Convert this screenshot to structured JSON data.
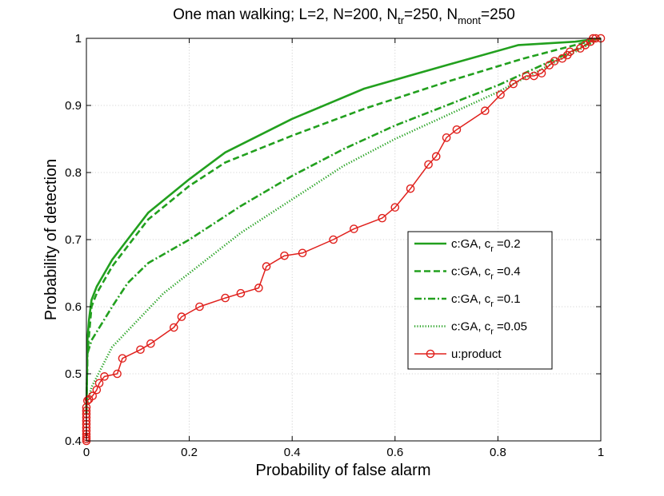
{
  "chart_data": {
    "type": "line",
    "title": {
      "prefix": "One man walking; L=2,  N=200, N",
      "sub1": "tr",
      "mid": "=250, N",
      "sub2": "mont",
      "suffix": "=250"
    },
    "xlabel": "Probability of false alarm",
    "ylabel": "Probability of detection",
    "xlim": [
      0,
      1
    ],
    "ylim": [
      0.4,
      1
    ],
    "xticks": [
      0,
      0.2,
      0.4,
      0.6,
      0.8,
      1
    ],
    "yticks": [
      0.4,
      0.5,
      0.6,
      0.7,
      0.8,
      0.9,
      1
    ],
    "xtick_labels": [
      "0",
      "0.2",
      "0.4",
      "0.6",
      "0.8",
      "1"
    ],
    "ytick_labels": [
      "0.4",
      "0.5",
      "0.6",
      "0.7",
      "0.8",
      "0.9",
      "1"
    ],
    "grid": true,
    "legend_position": "right-middle",
    "series": [
      {
        "name": "c:GA, c",
        "sub": "r",
        "suffix": " =0.2",
        "color": "#22a01e",
        "style": "solid",
        "marker": "none",
        "x": [
          0,
          0.002,
          0.005,
          0.01,
          0.02,
          0.05,
          0.08,
          0.12,
          0.2,
          0.27,
          0.4,
          0.54,
          0.7,
          0.84,
          0.95,
          1
        ],
        "y": [
          0.44,
          0.55,
          0.58,
          0.61,
          0.63,
          0.67,
          0.7,
          0.74,
          0.79,
          0.83,
          0.88,
          0.925,
          0.96,
          0.99,
          0.995,
          1
        ]
      },
      {
        "name": "c:GA, c",
        "sub": "r",
        "suffix": " =0.4",
        "color": "#22a01e",
        "style": "dashed",
        "marker": "none",
        "x": [
          0,
          0.002,
          0.01,
          0.02,
          0.05,
          0.08,
          0.12,
          0.2,
          0.27,
          0.4,
          0.54,
          0.7,
          0.85,
          1
        ],
        "y": [
          0.44,
          0.53,
          0.6,
          0.62,
          0.66,
          0.69,
          0.73,
          0.78,
          0.815,
          0.855,
          0.895,
          0.935,
          0.97,
          1
        ]
      },
      {
        "name": "c:GA, c",
        "sub": "r",
        "suffix": " =0.1",
        "color": "#22a01e",
        "style": "dashdot",
        "marker": "none",
        "x": [
          0,
          0.002,
          0.01,
          0.05,
          0.08,
          0.12,
          0.2,
          0.3,
          0.4,
          0.5,
          0.6,
          0.7,
          0.8,
          0.9,
          0.97,
          1
        ],
        "y": [
          0.45,
          0.53,
          0.55,
          0.6,
          0.635,
          0.665,
          0.7,
          0.75,
          0.795,
          0.835,
          0.87,
          0.9,
          0.93,
          0.965,
          0.99,
          1
        ]
      },
      {
        "name": "c:GA, c",
        "sub": "r",
        "suffix": " =0.05",
        "color": "#22a01e",
        "style": "dotted",
        "marker": "none",
        "x": [
          0,
          0.01,
          0.05,
          0.1,
          0.15,
          0.2,
          0.3,
          0.4,
          0.5,
          0.6,
          0.7,
          0.8,
          0.9,
          1
        ],
        "y": [
          0.45,
          0.48,
          0.54,
          0.58,
          0.62,
          0.65,
          0.71,
          0.76,
          0.81,
          0.85,
          0.885,
          0.92,
          0.96,
          1
        ]
      },
      {
        "name": "u:product",
        "sub": "",
        "suffix": "",
        "color": "#e0201c",
        "style": "solid",
        "marker": "circle",
        "x": [
          0,
          0,
          0,
          0,
          0,
          0,
          0,
          0,
          0,
          0,
          0,
          0,
          0.002,
          0.005,
          0.012,
          0.02,
          0.025,
          0.035,
          0.06,
          0.07,
          0.105,
          0.125,
          0.17,
          0.185,
          0.22,
          0.27,
          0.3,
          0.335,
          0.35,
          0.385,
          0.42,
          0.48,
          0.52,
          0.575,
          0.6,
          0.63,
          0.665,
          0.68,
          0.7,
          0.72,
          0.775,
          0.805,
          0.83,
          0.855,
          0.87,
          0.885,
          0.9,
          0.91,
          0.925,
          0.935,
          0.94,
          0.96,
          0.97,
          0.98,
          0.985,
          0.99,
          1
        ],
        "y": [
          0.4,
          0.403,
          0.406,
          0.41,
          0.415,
          0.42,
          0.425,
          0.43,
          0.435,
          0.44,
          0.445,
          0.45,
          0.46,
          0.462,
          0.467,
          0.476,
          0.486,
          0.496,
          0.5,
          0.523,
          0.536,
          0.545,
          0.569,
          0.585,
          0.6,
          0.613,
          0.62,
          0.628,
          0.66,
          0.676,
          0.68,
          0.7,
          0.716,
          0.732,
          0.748,
          0.776,
          0.812,
          0.824,
          0.852,
          0.864,
          0.892,
          0.916,
          0.932,
          0.944,
          0.944,
          0.948,
          0.96,
          0.966,
          0.97,
          0.975,
          0.98,
          0.985,
          0.99,
          0.995,
          1,
          1,
          1
        ]
      }
    ]
  }
}
